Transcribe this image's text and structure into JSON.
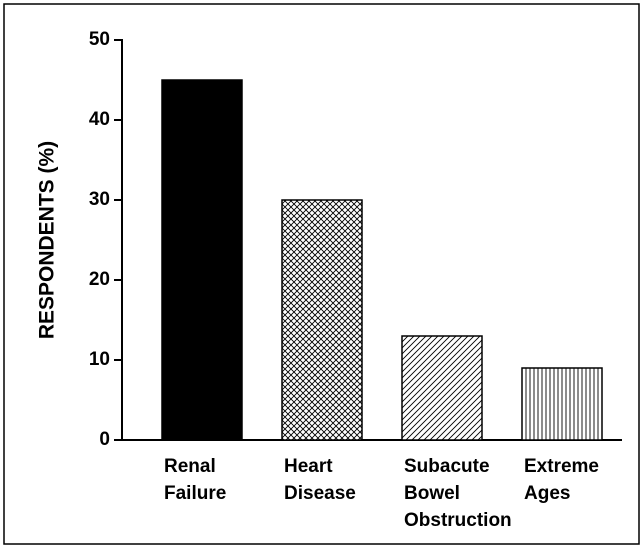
{
  "chart_data": {
    "type": "bar",
    "y_label": "RESPONDENTS (%)",
    "categories": [
      [
        "Renal",
        "Failure"
      ],
      [
        "Heart",
        "Disease"
      ],
      [
        "Subacute",
        "Bowel",
        "Obstruction"
      ],
      [
        "Extreme",
        "Ages"
      ]
    ],
    "values": [
      45,
      30,
      13,
      9
    ],
    "patterns": [
      "solid",
      "crosshatch",
      "diagonal",
      "vertical"
    ],
    "color": "#000000",
    "ylim": [
      0,
      50
    ],
    "yticks": [
      0,
      10,
      20,
      30,
      40,
      50
    ],
    "grid": false
  }
}
